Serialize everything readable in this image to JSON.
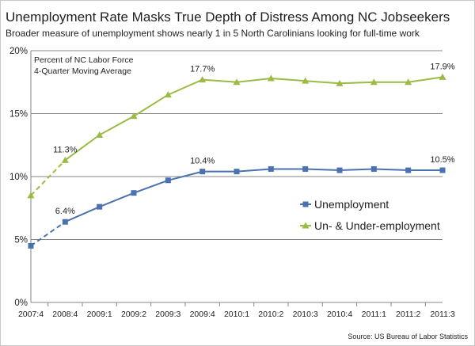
{
  "chart_data": {
    "type": "line",
    "title": "Unemployment Rate Masks True Depth of Distress Among NC Jobseekers",
    "subtitle": "Broader measure of unemployment shows nearly 1 in 5 North Carolinians looking for full-time work",
    "annotation": [
      "Percent of NC Labor Force",
      "4-Quarter Moving Average"
    ],
    "source": "Source: US Bureau of Labor Statistics",
    "categories": [
      "2007:4",
      "2008:4",
      "2009:1",
      "2009:2",
      "2009:3",
      "2009:4",
      "2010:1",
      "2010:2",
      "2010:3",
      "2010:4",
      "2011:1",
      "2011:2",
      "2011:3"
    ],
    "ylim": [
      0,
      20
    ],
    "yticks": [
      0,
      5,
      10,
      15,
      20
    ],
    "ytick_labels": [
      "0%",
      "5%",
      "10%",
      "15%",
      "20%"
    ],
    "dashed_first_segment": true,
    "grid": "horizontal",
    "legend_position": "right",
    "series": [
      {
        "name": "Unemployment",
        "color": "#4a72b0",
        "marker": "square",
        "values": [
          4.5,
          6.4,
          7.6,
          8.7,
          9.7,
          10.4,
          10.4,
          10.6,
          10.6,
          10.5,
          10.6,
          10.5,
          10.5
        ],
        "labels": [
          {
            "index": 1,
            "text": "6.4%"
          },
          {
            "index": 5,
            "text": "10.4%"
          },
          {
            "index": 12,
            "text": "10.5%"
          }
        ]
      },
      {
        "name": "Un- & Under-employment",
        "color": "#9bbb45",
        "marker": "triangle",
        "values": [
          8.5,
          11.3,
          13.3,
          14.8,
          16.5,
          17.7,
          17.5,
          17.8,
          17.6,
          17.4,
          17.5,
          17.5,
          17.9
        ],
        "labels": [
          {
            "index": 1,
            "text": "11.3%"
          },
          {
            "index": 5,
            "text": "17.7%"
          },
          {
            "index": 12,
            "text": "17.9%"
          }
        ]
      }
    ]
  }
}
